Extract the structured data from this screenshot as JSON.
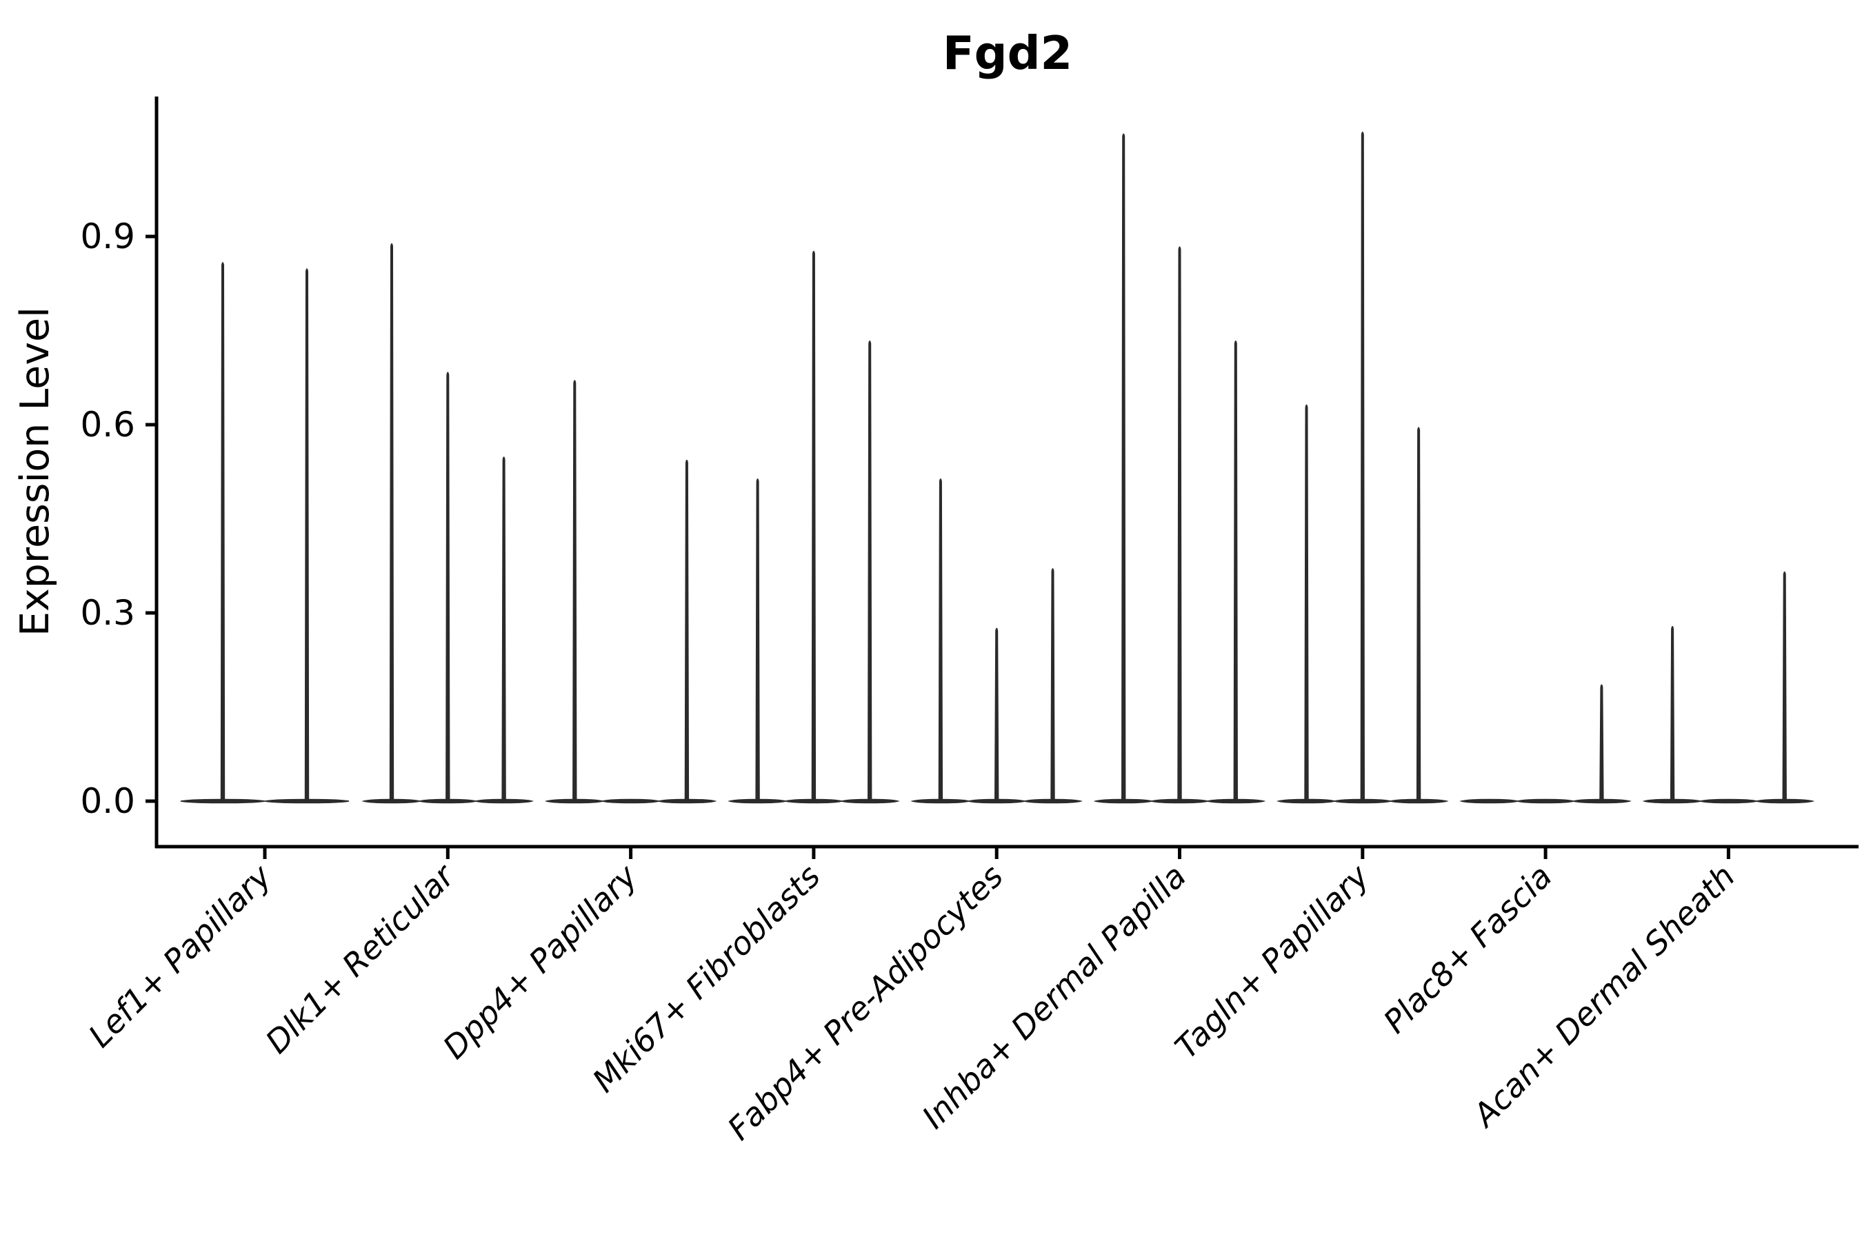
{
  "figure": {
    "title": "Fgd2",
    "background": "#ffffff"
  },
  "chart_data": {
    "type": "violin",
    "title": "Fgd2",
    "xlabel": "",
    "ylabel": "Expression Level",
    "ytick_labels": [
      "0.0",
      "0.3",
      "0.6",
      "0.9"
    ],
    "ytick_values": [
      0.0,
      0.3,
      0.6,
      0.9
    ],
    "ylim": [
      -0.073,
      1.124
    ],
    "grid": false,
    "legend_position": "none",
    "style_note": "violins are near-zero-width spikes: dense mass at expression 0 with a thin vertical tail up to the maximum expression value",
    "categories": [
      "Lef1+ Papillary",
      "Dlk1+ Reticular",
      "Dpp4+ Papillary",
      "Mki67+ Fibroblasts",
      "Fabp4+ Pre-Adipocytes",
      "Inhba+ Dermal Papilla",
      "Tagln+ Papillary",
      "Plac8+ Fascia",
      "Acan+ Dermal Sheath"
    ],
    "groups": [
      {
        "label": "Lef1+ Papillary",
        "violin_maxima": [
          0.86,
          0.85
        ]
      },
      {
        "label": "Dlk1+ Reticular",
        "violin_maxima": [
          0.89,
          0.685,
          0.55
        ]
      },
      {
        "label": "Dpp4+ Papillary",
        "violin_maxima": [
          0.672,
          0.0,
          0.545
        ]
      },
      {
        "label": "Mki67+ Fibroblasts",
        "violin_maxima": [
          0.515,
          0.878,
          0.735
        ]
      },
      {
        "label": "Fabp4+ Pre-Adipocytes",
        "violin_maxima": [
          0.515,
          0.277,
          0.372
        ]
      },
      {
        "label": "Inhba+ Dermal Papilla",
        "violin_maxima": [
          1.065,
          0.885,
          0.735
        ]
      },
      {
        "label": "Tagln+ Papillary",
        "violin_maxima": [
          0.633,
          1.068,
          0.597
        ]
      },
      {
        "label": "Plac8+ Fascia",
        "violin_maxima": [
          0.0,
          0.0,
          0.187
        ]
      },
      {
        "label": "Acan+ Dermal Sheath",
        "violin_maxima": [
          0.28,
          0.0,
          0.367
        ]
      }
    ],
    "colors": {
      "violin_fill": "#2b2b2b",
      "axis": "#000000",
      "text": "#000000"
    }
  }
}
